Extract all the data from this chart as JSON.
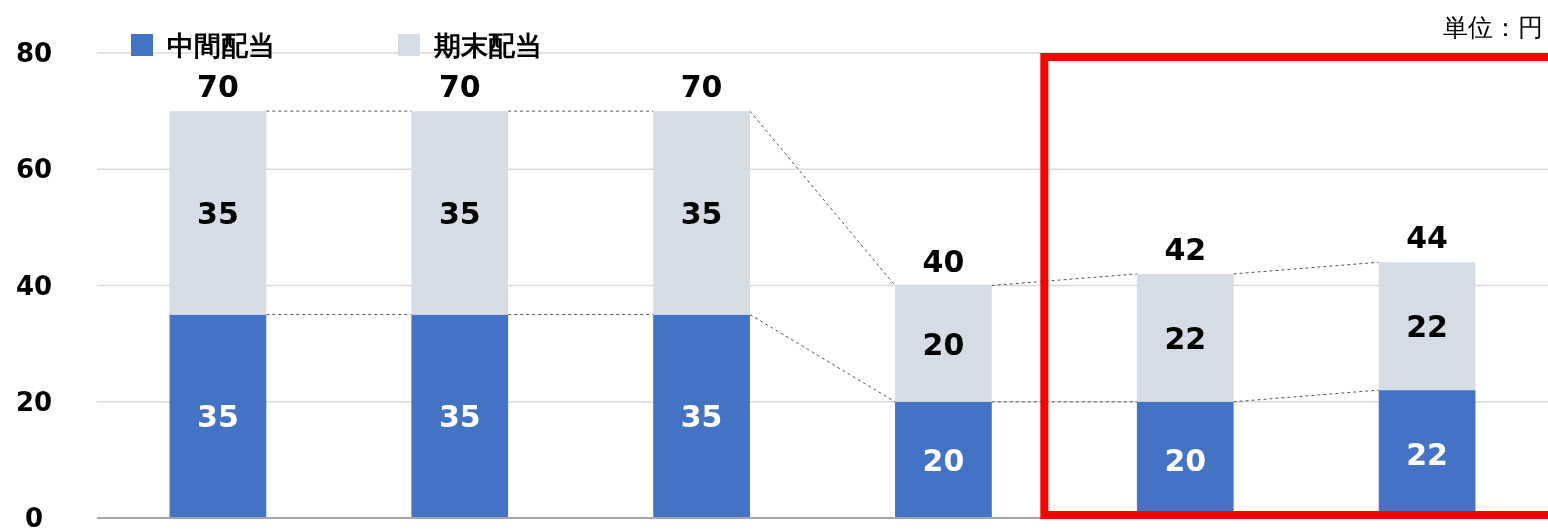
{
  "chart_data": {
    "type": "bar",
    "stacked": true,
    "categories": [
      null,
      null,
      null,
      null,
      null,
      null
    ],
    "series": [
      {
        "name": "中間配当",
        "color": "#4472c4",
        "values": [
          35,
          35,
          35,
          20,
          20,
          22
        ]
      },
      {
        "name": "期末配当",
        "color": "#d6dce5",
        "values": [
          35,
          35,
          35,
          20,
          22,
          22
        ]
      }
    ],
    "data_labels": true,
    "totals": [
      "70",
      "70",
      "70",
      "40",
      "42",
      "44"
    ],
    "ylim": [
      0,
      80
    ],
    "yticks": [
      0,
      20,
      40,
      60,
      80
    ],
    "grid": "y",
    "legend": "top left",
    "annotations": [
      "単位：円"
    ]
  }
}
